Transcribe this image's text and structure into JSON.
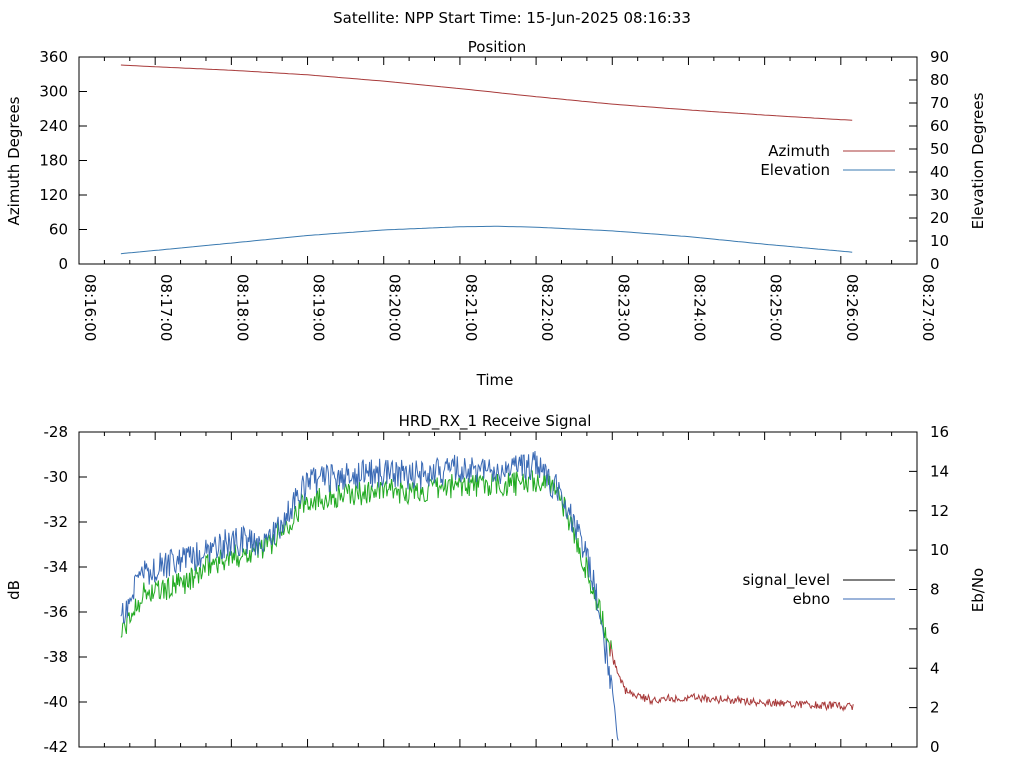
{
  "header": {
    "title": "Satellite: NPP    Start Time: 15-Jun-2025 08:16:33"
  },
  "chart_data": [
    {
      "type": "line",
      "title": "Position",
      "xlabel": "Time",
      "ylabel": "Azimuth Degrees",
      "y2label": "Elevation Degrees",
      "x_ticks": [
        "08:16:00",
        "08:17:00",
        "08:18:00",
        "08:19:00",
        "08:20:00",
        "08:21:00",
        "08:22:00",
        "08:23:00",
        "08:24:00",
        "08:25:00",
        "08:26:00",
        "08:27:00"
      ],
      "xlim_minutes": [
        0,
        11
      ],
      "ylim": [
        0,
        360
      ],
      "y2lim": [
        0,
        90
      ],
      "y_ticks": [
        "0",
        "60",
        "120",
        "180",
        "240",
        "300",
        "360"
      ],
      "y2_ticks": [
        "0",
        "10",
        "20",
        "30",
        "40",
        "50",
        "60",
        "70",
        "80",
        "90"
      ],
      "legend_position": "right",
      "colors": {
        "azimuth": "#a83a3a",
        "elevation": "#3a7ab0"
      },
      "series": [
        {
          "name": "Azimuth",
          "axis": "left",
          "x": [
            "08:16:33",
            "08:17:00",
            "08:18:00",
            "08:19:00",
            "08:20:00",
            "08:21:00",
            "08:22:00",
            "08:23:00",
            "08:24:00",
            "08:25:00",
            "08:26:00",
            "08:26:10"
          ],
          "values": [
            346,
            343,
            337,
            329,
            318,
            305,
            291,
            278,
            268,
            259,
            251,
            250
          ]
        },
        {
          "name": "Elevation",
          "axis": "right",
          "x": [
            "08:16:33",
            "08:17:00",
            "08:18:00",
            "08:19:00",
            "08:20:00",
            "08:21:00",
            "08:21:30",
            "08:22:00",
            "08:23:00",
            "08:24:00",
            "08:25:00",
            "08:26:00",
            "08:26:10"
          ],
          "values": [
            4.5,
            5.9,
            9.1,
            12.4,
            14.8,
            16.2,
            16.4,
            16.0,
            14.4,
            11.9,
            8.6,
            5.6,
            5.1
          ]
        }
      ]
    },
    {
      "type": "line",
      "title": "HRD_RX_1 Receive Signal",
      "ylabel": "dB",
      "y2label": "Eb/No",
      "xlim_minutes": [
        0,
        11
      ],
      "ylim": [
        -42,
        -28
      ],
      "y2lim": [
        0,
        16
      ],
      "y_ticks": [
        "-42",
        "-40",
        "-38",
        "-36",
        "-34",
        "-32",
        "-30",
        "-28"
      ],
      "y2_ticks": [
        "0",
        "2",
        "4",
        "6",
        "8",
        "10",
        "12",
        "14",
        "16"
      ],
      "legend_position": "right",
      "colors": {
        "signal_level": "#a83a3a",
        "signal_level_legend": "#000000",
        "signal_level_high": "#22aa22",
        "ebno": "#3a6ab5"
      },
      "series": [
        {
          "name": "signal_level",
          "axis": "left",
          "x": [
            "08:16:33",
            "08:16:50",
            "08:17:10",
            "08:17:30",
            "08:17:45",
            "08:18:00",
            "08:18:30",
            "08:19:00",
            "08:19:30",
            "08:20:00",
            "08:20:30",
            "08:21:00",
            "08:21:30",
            "08:22:00",
            "08:22:15",
            "08:22:30",
            "08:22:45",
            "08:23:00",
            "08:23:10",
            "08:23:30",
            "08:24:00",
            "08:25:00",
            "08:26:00",
            "08:26:10"
          ],
          "values": [
            -37.0,
            -35.2,
            -35.0,
            -34.5,
            -33.8,
            -33.6,
            -33.0,
            -31.0,
            -30.8,
            -30.6,
            -30.7,
            -30.3,
            -30.4,
            -30.2,
            -30.3,
            -32.5,
            -35.0,
            -38.0,
            -39.5,
            -39.9,
            -39.8,
            -40.0,
            -40.2,
            -40.2
          ]
        },
        {
          "name": "ebno",
          "axis": "right",
          "x": [
            "08:16:33",
            "08:16:50",
            "08:17:10",
            "08:17:30",
            "08:17:45",
            "08:18:00",
            "08:18:30",
            "08:19:00",
            "08:19:30",
            "08:20:00",
            "08:20:30",
            "08:21:00",
            "08:21:30",
            "08:22:00",
            "08:22:15",
            "08:22:30",
            "08:22:45",
            "08:23:00",
            "08:23:05"
          ],
          "values": [
            6.5,
            8.8,
            9.3,
            9.6,
            10.2,
            10.4,
            10.5,
            13.4,
            13.8,
            13.9,
            13.8,
            14.2,
            13.9,
            14.3,
            13.2,
            11.5,
            8.5,
            3.0,
            0.0
          ]
        }
      ]
    }
  ]
}
